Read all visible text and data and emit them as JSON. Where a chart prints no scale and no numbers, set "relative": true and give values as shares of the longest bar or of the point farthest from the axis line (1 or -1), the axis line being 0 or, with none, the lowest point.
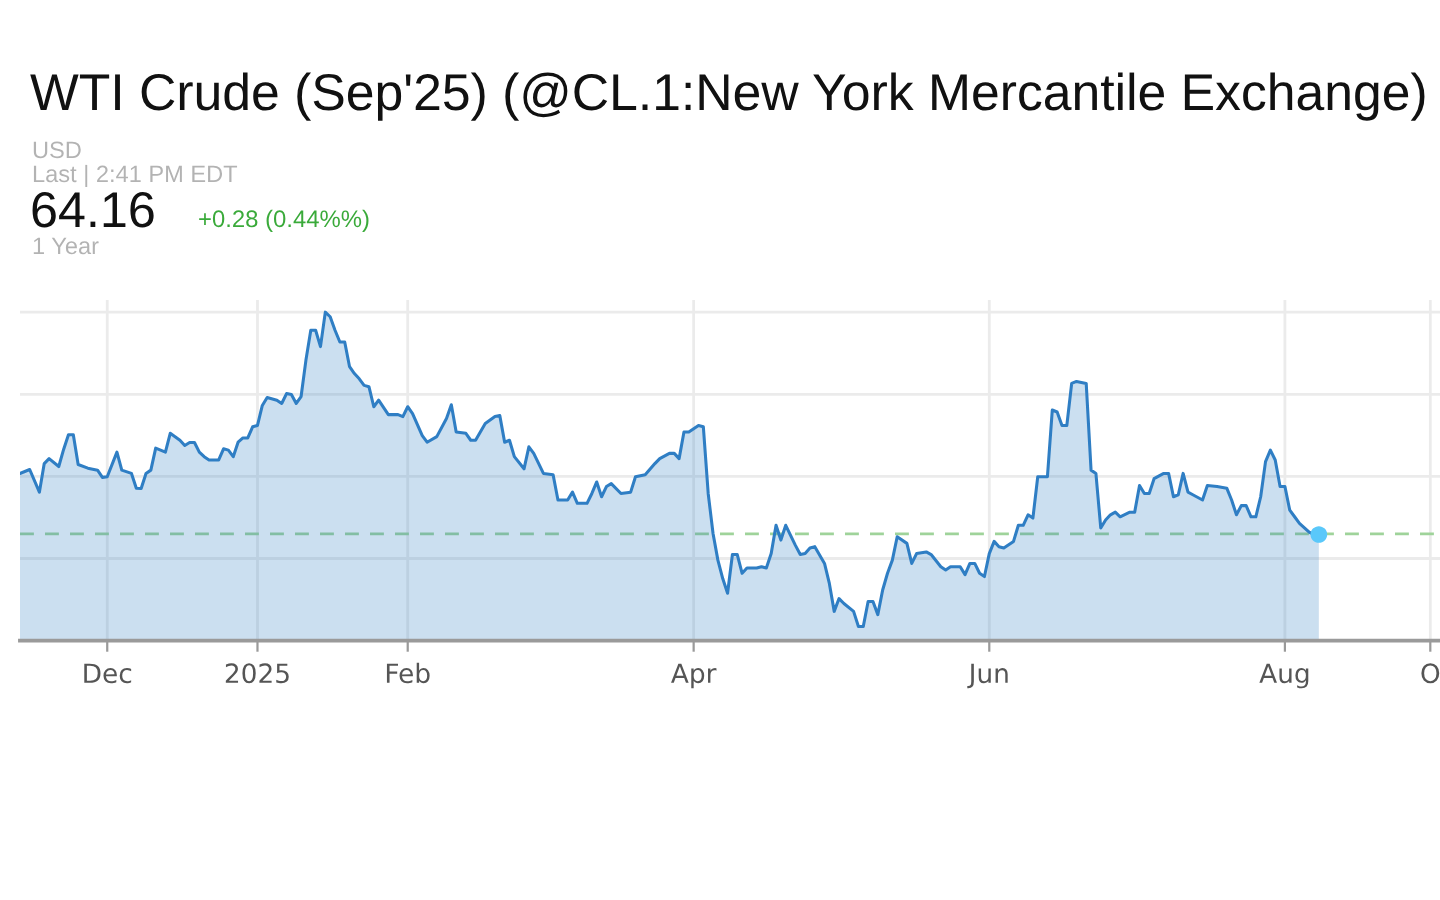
{
  "chart_data": {
    "type": "area",
    "title": "WTI Crude (Sep'25) (@CL.1:New York Mercantile Exchange)",
    "annotations": [
      "USD",
      "Last | 2:41 PM EDT",
      "64.16",
      "+0.28 (0.44%%)",
      "1 Year"
    ],
    "relative": true,
    "grid": true,
    "xlim": [
      "2024-11-13",
      "2025-09-02"
    ],
    "xticks": [
      {
        "value": "2024-12-01",
        "label": "Dec"
      },
      {
        "value": "2025-01-01",
        "label": "2025"
      },
      {
        "value": "2025-02-01",
        "label": "Feb"
      },
      {
        "value": "2025-04-01",
        "label": "Apr"
      },
      {
        "value": "2025-06-01",
        "label": "Jun"
      },
      {
        "value": "2025-08-01",
        "label": "Aug"
      },
      {
        "value": "2025-08-31",
        "label": "O"
      }
    ],
    "ref_lines": [
      {
        "axis": "y",
        "value": 0.325,
        "color": "#9fd39a",
        "line_style": "dashed"
      }
    ],
    "series": [
      {
        "color": "#2f7ec4",
        "x": [
          "2024-11-13",
          "2024-11-15",
          "2024-11-17",
          "2024-11-18",
          "2024-11-19",
          "2024-11-21",
          "2024-11-22",
          "2024-11-23",
          "2024-11-24",
          "2024-11-25",
          "2024-11-27",
          "2024-11-29",
          "2024-11-30",
          "2024-12-01",
          "2024-12-03",
          "2024-12-04",
          "2024-12-06",
          "2024-12-07",
          "2024-12-08",
          "2024-12-09",
          "2024-12-10",
          "2024-12-11",
          "2024-12-13",
          "2024-12-14",
          "2024-12-16",
          "2024-12-17",
          "2024-12-18",
          "2024-12-19",
          "2024-12-20",
          "2024-12-21",
          "2024-12-22",
          "2024-12-24",
          "2024-12-25",
          "2024-12-26",
          "2024-12-27",
          "2024-12-28",
          "2024-12-29",
          "2024-12-30",
          "2024-12-31",
          "2025-01-01",
          "2025-01-02",
          "2025-01-03",
          "2025-01-05",
          "2025-01-06",
          "2025-01-07",
          "2025-01-08",
          "2025-01-09",
          "2025-01-10",
          "2025-01-11",
          "2025-01-12",
          "2025-01-13",
          "2025-01-14",
          "2025-01-15",
          "2025-01-16",
          "2025-01-17",
          "2025-01-18",
          "2025-01-19",
          "2025-01-20",
          "2025-01-21",
          "2025-01-22",
          "2025-01-23",
          "2025-01-24",
          "2025-01-25",
          "2025-01-26",
          "2025-01-28",
          "2025-01-30",
          "2025-01-31",
          "2025-02-01",
          "2025-02-02",
          "2025-02-04",
          "2025-02-05",
          "2025-02-07",
          "2025-02-09",
          "2025-02-10",
          "2025-02-11",
          "2025-02-13",
          "2025-02-14",
          "2025-02-15",
          "2025-02-17",
          "2025-02-19",
          "2025-02-20",
          "2025-02-21",
          "2025-02-22",
          "2025-02-23",
          "2025-02-25",
          "2025-02-26",
          "2025-02-27",
          "2025-03-01",
          "2025-03-03",
          "2025-03-04",
          "2025-03-06",
          "2025-03-07",
          "2025-03-08",
          "2025-03-10",
          "2025-03-11",
          "2025-03-12",
          "2025-03-13",
          "2025-03-14",
          "2025-03-15",
          "2025-03-17",
          "2025-03-19",
          "2025-03-20",
          "2025-03-22",
          "2025-03-24",
          "2025-03-25",
          "2025-03-27",
          "2025-03-28",
          "2025-03-29",
          "2025-03-30",
          "2025-03-31",
          "2025-04-02",
          "2025-04-03",
          "2025-04-04",
          "2025-04-05",
          "2025-04-06",
          "2025-04-07",
          "2025-04-08",
          "2025-04-09",
          "2025-04-10",
          "2025-04-11",
          "2025-04-12",
          "2025-04-14",
          "2025-04-15",
          "2025-04-16",
          "2025-04-17",
          "2025-04-18",
          "2025-04-19",
          "2025-04-20",
          "2025-04-22",
          "2025-04-23",
          "2025-04-24",
          "2025-04-25",
          "2025-04-26",
          "2025-04-28",
          "2025-04-29",
          "2025-04-30",
          "2025-05-01",
          "2025-05-02",
          "2025-05-04",
          "2025-05-05",
          "2025-05-06",
          "2025-05-07",
          "2025-05-08",
          "2025-05-09",
          "2025-05-10",
          "2025-05-11",
          "2025-05-12",
          "2025-05-13",
          "2025-05-15",
          "2025-05-16",
          "2025-05-17",
          "2025-05-19",
          "2025-05-20",
          "2025-05-22",
          "2025-05-23",
          "2025-05-24",
          "2025-05-26",
          "2025-05-27",
          "2025-05-28",
          "2025-05-29",
          "2025-05-30",
          "2025-05-31",
          "2025-06-01",
          "2025-06-02",
          "2025-06-03",
          "2025-06-04",
          "2025-06-06",
          "2025-06-07",
          "2025-06-08",
          "2025-06-09",
          "2025-06-10",
          "2025-06-11",
          "2025-06-13",
          "2025-06-14",
          "2025-06-15",
          "2025-06-16",
          "2025-06-17",
          "2025-06-18",
          "2025-06-19",
          "2025-06-21",
          "2025-06-22",
          "2025-06-23",
          "2025-06-24",
          "2025-06-25",
          "2025-06-26",
          "2025-06-27",
          "2025-06-28",
          "2025-06-30",
          "2025-07-01",
          "2025-07-02",
          "2025-07-03",
          "2025-07-04",
          "2025-07-05",
          "2025-07-07",
          "2025-07-08",
          "2025-07-09",
          "2025-07-10",
          "2025-07-11",
          "2025-07-12",
          "2025-07-13",
          "2025-07-15",
          "2025-07-16",
          "2025-07-18",
          "2025-07-20",
          "2025-07-21",
          "2025-07-22",
          "2025-07-23",
          "2025-07-24",
          "2025-07-25",
          "2025-07-26",
          "2025-07-27",
          "2025-07-28",
          "2025-07-29",
          "2025-07-30",
          "2025-07-31",
          "2025-08-01",
          "2025-08-02",
          "2025-08-03",
          "2025-08-04",
          "2025-08-06",
          "2025-08-07",
          "2025-08-08"
        ],
        "values": [
          0.509,
          0.521,
          0.452,
          0.539,
          0.554,
          0.53,
          0.582,
          0.627,
          0.627,
          0.536,
          0.525,
          0.519,
          0.497,
          0.499,
          0.574,
          0.519,
          0.509,
          0.464,
          0.463,
          0.509,
          0.519,
          0.586,
          0.574,
          0.631,
          0.61,
          0.594,
          0.603,
          0.603,
          0.574,
          0.56,
          0.55,
          0.55,
          0.584,
          0.58,
          0.56,
          0.604,
          0.617,
          0.617,
          0.651,
          0.655,
          0.716,
          0.74,
          0.732,
          0.722,
          0.752,
          0.749,
          0.722,
          0.743,
          0.854,
          0.945,
          0.945,
          0.895,
          1.0,
          0.986,
          0.945,
          0.909,
          0.909,
          0.834,
          0.813,
          0.797,
          0.777,
          0.773,
          0.712,
          0.732,
          0.688,
          0.688,
          0.682,
          0.712,
          0.691,
          0.624,
          0.604,
          0.621,
          0.676,
          0.718,
          0.635,
          0.631,
          0.61,
          0.61,
          0.661,
          0.682,
          0.685,
          0.604,
          0.61,
          0.56,
          0.523,
          0.59,
          0.57,
          0.509,
          0.505,
          0.428,
          0.428,
          0.452,
          0.418,
          0.418,
          0.448,
          0.483,
          0.438,
          0.469,
          0.478,
          0.448,
          0.452,
          0.499,
          0.505,
          0.539,
          0.554,
          0.57,
          0.57,
          0.554,
          0.635,
          0.635,
          0.655,
          0.651,
          0.448,
          0.326,
          0.245,
          0.189,
          0.144,
          0.262,
          0.262,
          0.205,
          0.221,
          0.221,
          0.225,
          0.221,
          0.265,
          0.351,
          0.306,
          0.351,
          0.29,
          0.262,
          0.265,
          0.282,
          0.286,
          0.235,
          0.174,
          0.089,
          0.128,
          0.113,
          0.089,
          0.043,
          0.043,
          0.119,
          0.119,
          0.079,
          0.154,
          0.205,
          0.245,
          0.316,
          0.296,
          0.235,
          0.265,
          0.27,
          0.262,
          0.225,
          0.215,
          0.225,
          0.225,
          0.201,
          0.235,
          0.235,
          0.205,
          0.195,
          0.265,
          0.302,
          0.286,
          0.282,
          0.302,
          0.351,
          0.351,
          0.383,
          0.373,
          0.499,
          0.499,
          0.702,
          0.696,
          0.655,
          0.655,
          0.783,
          0.789,
          0.783,
          0.519,
          0.509,
          0.343,
          0.367,
          0.383,
          0.391,
          0.377,
          0.391,
          0.391,
          0.472,
          0.448,
          0.448,
          0.493,
          0.509,
          0.509,
          0.438,
          0.444,
          0.509,
          0.452,
          0.444,
          0.428,
          0.472,
          0.469,
          0.464,
          0.428,
          0.383,
          0.411,
          0.411,
          0.377,
          0.377,
          0.438,
          0.545,
          0.58,
          0.55,
          0.469,
          0.469,
          0.397,
          0.377,
          0.357,
          0.33,
          0.323,
          0.323
        ]
      },
      {
        "type": "scatter",
        "color": "#5ac8fa",
        "x": [
          "2025-08-08"
        ],
        "values": [
          0.323
        ]
      }
    ]
  }
}
